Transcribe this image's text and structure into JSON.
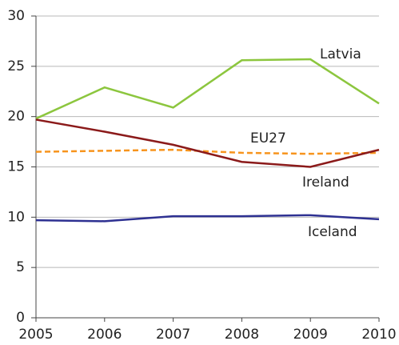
{
  "chart_data": {
    "type": "line",
    "x": [
      2005,
      2006,
      2007,
      2008,
      2009,
      2010
    ],
    "xlim": [
      2005,
      2010
    ],
    "xticks": [
      2005,
      2006,
      2007,
      2008,
      2009,
      2010
    ],
    "ylim": [
      0,
      30
    ],
    "yticks": [
      0,
      5,
      10,
      15,
      20,
      25,
      30
    ],
    "grid": true,
    "series": [
      {
        "name": "Latvia",
        "color": "#8cc63e",
        "values": [
          19.8,
          22.9,
          20.9,
          25.6,
          25.7,
          21.3
        ]
      },
      {
        "name": "EU27",
        "color": "#f7941d",
        "dashed": true,
        "values": [
          16.5,
          16.6,
          16.7,
          16.4,
          16.3,
          16.4
        ]
      },
      {
        "name": "Ireland",
        "color": "#8b1a1a",
        "values": [
          19.7,
          18.5,
          17.2,
          15.5,
          15.0,
          16.7
        ]
      },
      {
        "name": "Iceland",
        "color": "#2e3192",
        "values": [
          9.7,
          9.6,
          10.1,
          10.1,
          10.2,
          9.8
        ]
      }
    ]
  }
}
